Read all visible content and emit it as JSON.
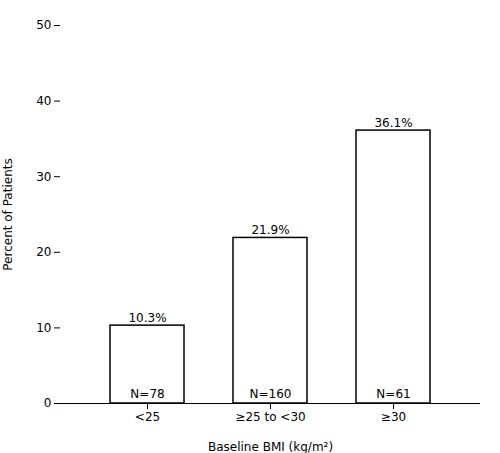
{
  "chart_data": {
    "type": "bar",
    "categories": [
      "<25",
      "≥25 to <30",
      "≥30"
    ],
    "values": [
      10.3,
      21.9,
      36.1
    ],
    "value_labels": [
      "10.3%",
      "21.9%",
      "36.1%"
    ],
    "data_labels": true,
    "annotations": [
      "N=78",
      "N=160",
      "N=61"
    ],
    "color": "#ffffff",
    "xlabel": "Baseline BMI (kg/m²)",
    "ylabel": "Percent of Patients",
    "ylim": [
      0,
      50
    ],
    "yticks": [
      0,
      10,
      20,
      30,
      40,
      50
    ],
    "grid": false
  }
}
